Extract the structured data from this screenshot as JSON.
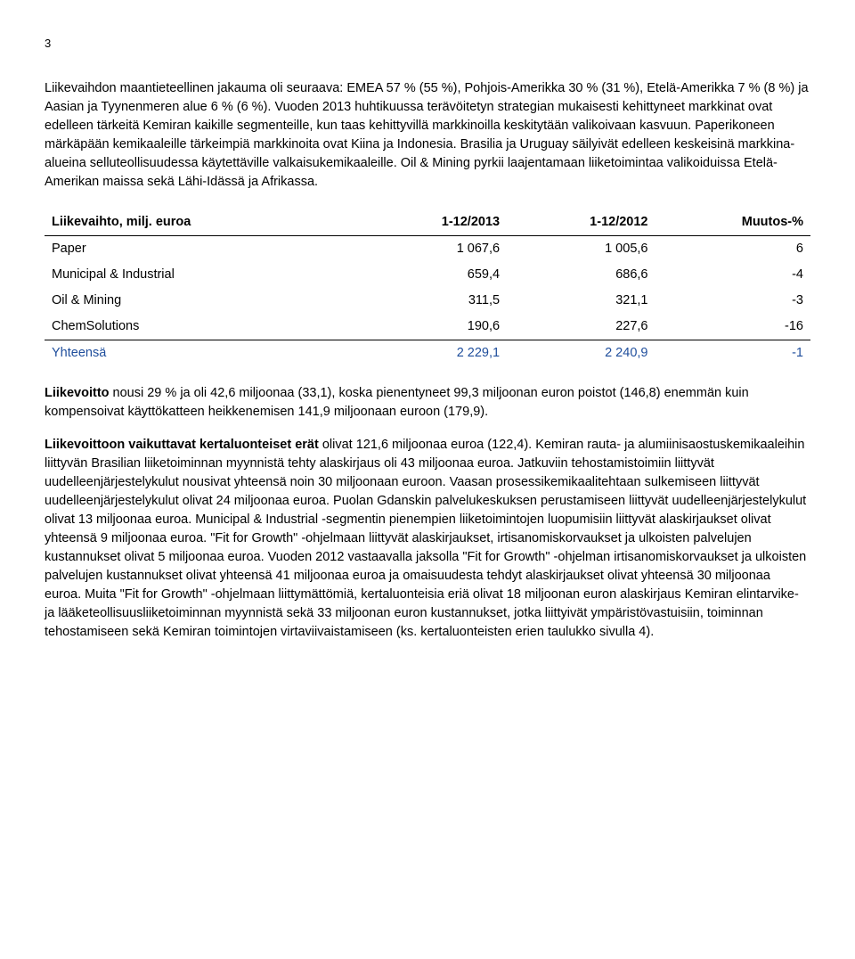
{
  "page_number": "3",
  "para1": "Liikevaihdon maantieteellinen jakauma oli seuraava: EMEA 57 % (55 %), Pohjois-Amerikka 30 % (31 %), Etelä-Amerikka 7 % (8 %) ja Aasian ja Tyynenmeren alue 6 % (6 %). Vuoden 2013 huhtikuussa terävöitetyn strategian mukaisesti kehittyneet markkinat ovat edelleen tärkeitä Kemiran kaikille segmenteille, kun taas kehittyvillä markkinoilla keskitytään valikoivaan kasvuun. Paperikoneen märkäpään kemikaaleille tärkeimpiä markkinoita ovat Kiina ja Indonesia. Brasilia ja Uruguay säilyivät edelleen keskeisinä markkina-alueina selluteollisuudessa käytettäville valkaisukemikaaleille. Oil & Mining pyrkii laajentamaan liiketoimintaa valikoiduissa Etelä-Amerikan maissa sekä Lähi-Idässä ja Afrikassa.",
  "table": {
    "headers": [
      "Liikevaihto, milj. euroa",
      "1-12/2013",
      "1-12/2012",
      "Muutos-%"
    ],
    "rows": [
      [
        "Paper",
        "1 067,6",
        "1 005,6",
        "6"
      ],
      [
        "Municipal & Industrial",
        "659,4",
        "686,6",
        "-4"
      ],
      [
        "Oil & Mining",
        "311,5",
        "321,1",
        "-3"
      ],
      [
        "ChemSolutions",
        "190,6",
        "227,6",
        "-16"
      ]
    ],
    "total": [
      "Yhteensä",
      "2 229,1",
      "2 240,9",
      "-1"
    ]
  },
  "para2_lead_bold": "Liikevoitto",
  "para2_rest": " nousi 29 % ja oli 42,6 miljoonaa (33,1), koska pienentyneet 99,3 miljoonan euron poistot (146,8) enemmän kuin kompensoivat käyttökatteen heikkenemisen 141,9 miljoonaan euroon (179,9).",
  "para3_lead_bold": "Liikevoittoon vaikuttavat kertaluonteiset erät",
  "para3_rest": " olivat 121,6 miljoonaa euroa (122,4). Kemiran rauta- ja alumiinisaostuskemikaaleihin liittyvän Brasilian liiketoiminnan myynnistä tehty alaskirjaus oli 43 miljoonaa euroa. Jatkuviin tehostamistoimiin liittyvät uudelleenjärjestelykulut nousivat yhteensä noin 30 miljoonaan euroon. Vaasan prosessikemikaalitehtaan sulkemiseen liittyvät uudelleenjärjestelykulut olivat 24 miljoonaa euroa. Puolan Gdanskin palvelukeskuksen perustamiseen liittyvät uudelleenjärjestelykulut olivat 13 miljoonaa euroa. Municipal & Industrial -segmentin pienempien liiketoimintojen luopumisiin liittyvät alaskirjaukset olivat yhteensä 9 miljoonaa euroa. \"Fit for Growth\" -ohjelmaan liittyvät alaskirjaukset, irtisanomiskorvaukset ja ulkoisten palvelujen kustannukset olivat 5 miljoonaa euroa. Vuoden 2012 vastaavalla jaksolla \"Fit for Growth\" -ohjelman irtisanomiskorvaukset ja ulkoisten palvelujen kustannukset olivat yhteensä 41 miljoonaa euroa ja omaisuudesta tehdyt alaskirjaukset olivat yhteensä 30 miljoonaa euroa. Muita \"Fit for Growth\" -ohjelmaan liittymättömiä, kertaluonteisia eriä olivat 18 miljoonan euron alaskirjaus Kemiran elintarvike- ja lääketeollisuusliiketoiminnan myynnistä sekä 33 miljoonan euron kustannukset, jotka liittyivät ympäristövastuisiin, toiminnan tehostamiseen sekä Kemiran toimintojen virtaviivaistamiseen (ks. kertaluonteisten erien taulukko sivulla 4)."
}
